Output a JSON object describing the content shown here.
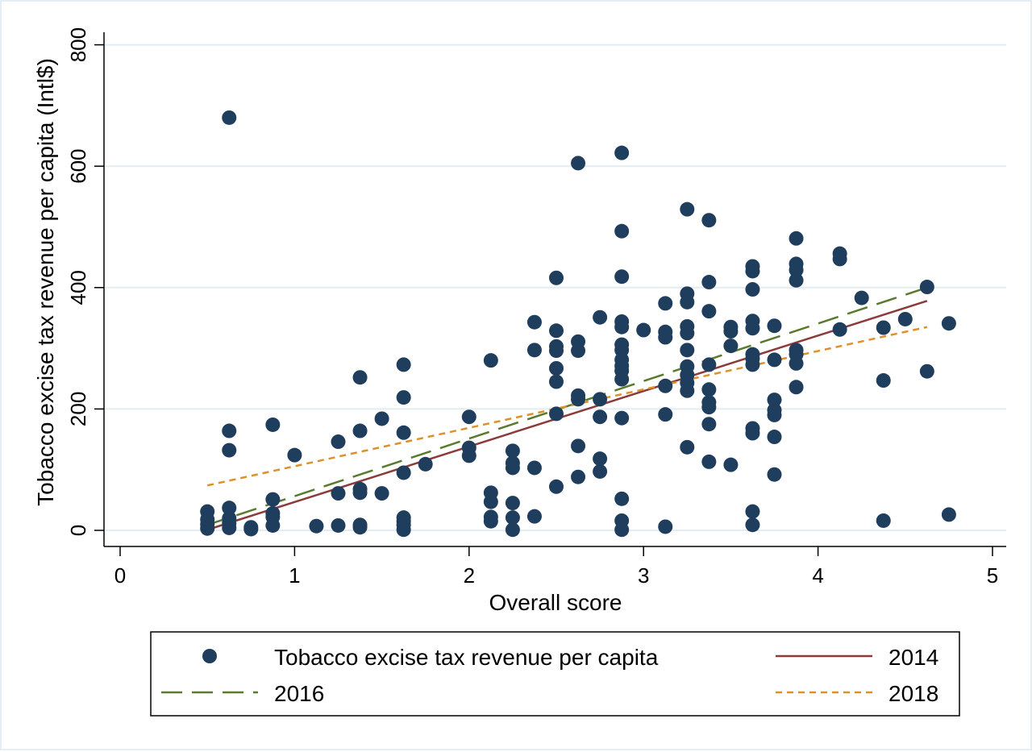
{
  "chart_data": {
    "type": "scatter",
    "xlabel": "Overall score",
    "ylabel": "Tobacco excise tax revenue per capita (Intl$)",
    "xlim": [
      0,
      5
    ],
    "ylim": [
      0,
      800
    ],
    "x_ticks": [
      "0",
      "1",
      "2",
      "3",
      "4",
      "5"
    ],
    "y_ticks": [
      "0",
      "200",
      "400",
      "600",
      "800"
    ],
    "x_tick_values": [
      0,
      1,
      2,
      3,
      4,
      5
    ],
    "y_tick_values": [
      0,
      200,
      400,
      600,
      800
    ],
    "grid": "horizontal",
    "legend_position": "bottom",
    "colors": {
      "points": "#1f3d5c",
      "line_2014": "#8c3a3a",
      "line_2016": "#5a7a2e",
      "line_2018": "#e0902a",
      "grid": "#e4ecf2"
    },
    "series": [
      {
        "name": "Tobacco excise tax revenue per capita",
        "kind": "points",
        "points": [
          [
            0.5,
            3
          ],
          [
            0.5,
            10
          ],
          [
            0.5,
            18
          ],
          [
            0.5,
            31
          ],
          [
            0.625,
            4
          ],
          [
            0.625,
            12
          ],
          [
            0.625,
            20
          ],
          [
            0.625,
            37
          ],
          [
            0.625,
            132
          ],
          [
            0.625,
            164
          ],
          [
            0.625,
            680
          ],
          [
            0.75,
            2
          ],
          [
            0.75,
            5
          ],
          [
            0.875,
            8
          ],
          [
            0.875,
            22
          ],
          [
            0.875,
            28
          ],
          [
            0.875,
            51
          ],
          [
            0.875,
            174
          ],
          [
            1.0,
            124
          ],
          [
            1.125,
            7
          ],
          [
            1.25,
            8
          ],
          [
            1.25,
            61
          ],
          [
            1.25,
            146
          ],
          [
            1.375,
            5
          ],
          [
            1.375,
            9
          ],
          [
            1.375,
            62
          ],
          [
            1.375,
            68
          ],
          [
            1.375,
            164
          ],
          [
            1.375,
            252
          ],
          [
            1.5,
            61
          ],
          [
            1.5,
            184
          ],
          [
            1.625,
            1
          ],
          [
            1.625,
            9
          ],
          [
            1.625,
            15
          ],
          [
            1.625,
            21
          ],
          [
            1.625,
            95
          ],
          [
            1.625,
            161
          ],
          [
            1.625,
            219
          ],
          [
            1.625,
            273
          ],
          [
            1.75,
            109
          ],
          [
            2.0,
            123
          ],
          [
            2.0,
            136
          ],
          [
            2.0,
            187
          ],
          [
            2.125,
            15
          ],
          [
            2.125,
            22
          ],
          [
            2.125,
            47
          ],
          [
            2.125,
            62
          ],
          [
            2.125,
            280
          ],
          [
            2.25,
            1
          ],
          [
            2.25,
            21
          ],
          [
            2.25,
            45
          ],
          [
            2.25,
            103
          ],
          [
            2.25,
            111
          ],
          [
            2.25,
            131
          ],
          [
            2.375,
            23
          ],
          [
            2.375,
            103
          ],
          [
            2.375,
            297
          ],
          [
            2.375,
            343
          ],
          [
            2.5,
            72
          ],
          [
            2.5,
            192
          ],
          [
            2.5,
            245
          ],
          [
            2.5,
            267
          ],
          [
            2.5,
            296
          ],
          [
            2.5,
            303
          ],
          [
            2.5,
            329
          ],
          [
            2.5,
            416
          ],
          [
            2.625,
            88
          ],
          [
            2.625,
            139
          ],
          [
            2.625,
            216
          ],
          [
            2.625,
            222
          ],
          [
            2.625,
            296
          ],
          [
            2.625,
            311
          ],
          [
            2.625,
            605
          ],
          [
            2.75,
            97
          ],
          [
            2.75,
            118
          ],
          [
            2.75,
            187
          ],
          [
            2.75,
            216
          ],
          [
            2.75,
            351
          ],
          [
            2.875,
            1
          ],
          [
            2.875,
            16
          ],
          [
            2.875,
            52
          ],
          [
            2.875,
            185
          ],
          [
            2.875,
            249
          ],
          [
            2.875,
            263
          ],
          [
            2.875,
            271
          ],
          [
            2.875,
            281
          ],
          [
            2.875,
            297
          ],
          [
            2.875,
            306
          ],
          [
            2.875,
            335
          ],
          [
            2.875,
            344
          ],
          [
            2.875,
            418
          ],
          [
            2.875,
            493
          ],
          [
            2.875,
            622
          ],
          [
            3.0,
            330
          ],
          [
            3.125,
            6
          ],
          [
            3.125,
            191
          ],
          [
            3.125,
            238
          ],
          [
            3.125,
            318
          ],
          [
            3.125,
            327
          ],
          [
            3.125,
            374
          ],
          [
            3.25,
            137
          ],
          [
            3.25,
            230
          ],
          [
            3.25,
            243
          ],
          [
            3.25,
            256
          ],
          [
            3.25,
            270
          ],
          [
            3.25,
            297
          ],
          [
            3.25,
            325
          ],
          [
            3.25,
            336
          ],
          [
            3.25,
            376
          ],
          [
            3.25,
            390
          ],
          [
            3.25,
            529
          ],
          [
            3.375,
            113
          ],
          [
            3.375,
            175
          ],
          [
            3.375,
            203
          ],
          [
            3.375,
            211
          ],
          [
            3.375,
            232
          ],
          [
            3.375,
            273
          ],
          [
            3.375,
            361
          ],
          [
            3.375,
            409
          ],
          [
            3.375,
            511
          ],
          [
            3.5,
            108
          ],
          [
            3.5,
            304
          ],
          [
            3.5,
            328
          ],
          [
            3.5,
            335
          ],
          [
            3.625,
            9
          ],
          [
            3.625,
            31
          ],
          [
            3.625,
            160
          ],
          [
            3.625,
            168
          ],
          [
            3.625,
            273
          ],
          [
            3.625,
            283
          ],
          [
            3.625,
            290
          ],
          [
            3.625,
            333
          ],
          [
            3.625,
            345
          ],
          [
            3.625,
            397
          ],
          [
            3.625,
            427
          ],
          [
            3.625,
            435
          ],
          [
            3.75,
            92
          ],
          [
            3.75,
            154
          ],
          [
            3.75,
            190
          ],
          [
            3.75,
            198
          ],
          [
            3.75,
            215
          ],
          [
            3.75,
            281
          ],
          [
            3.75,
            337
          ],
          [
            3.875,
            236
          ],
          [
            3.875,
            275
          ],
          [
            3.875,
            290
          ],
          [
            3.875,
            297
          ],
          [
            3.875,
            412
          ],
          [
            3.875,
            429
          ],
          [
            3.875,
            439
          ],
          [
            3.875,
            481
          ],
          [
            4.125,
            331
          ],
          [
            4.125,
            447
          ],
          [
            4.125,
            456
          ],
          [
            4.25,
            383
          ],
          [
            4.375,
            16
          ],
          [
            4.375,
            247
          ],
          [
            4.375,
            334
          ],
          [
            4.5,
            348
          ],
          [
            4.625,
            262
          ],
          [
            4.625,
            401
          ],
          [
            4.75,
            26
          ],
          [
            4.75,
            341
          ]
        ]
      },
      {
        "name": "2014",
        "kind": "line",
        "dash": "solid",
        "x": [
          0.5,
          4.625
        ],
        "y": [
          1,
          378
        ]
      },
      {
        "name": "2016",
        "kind": "line",
        "dash": "long",
        "x": [
          0.5,
          4.625
        ],
        "y": [
          9,
          400
        ]
      },
      {
        "name": "2018",
        "kind": "line",
        "dash": "short",
        "x": [
          0.5,
          4.625
        ],
        "y": [
          74,
          335
        ]
      }
    ],
    "legend": [
      {
        "label": "Tobacco excise tax revenue per capita",
        "kind": "points"
      },
      {
        "label": "2014",
        "kind": "solid"
      },
      {
        "label": "2016",
        "kind": "long"
      },
      {
        "label": "2018",
        "kind": "short"
      }
    ]
  }
}
